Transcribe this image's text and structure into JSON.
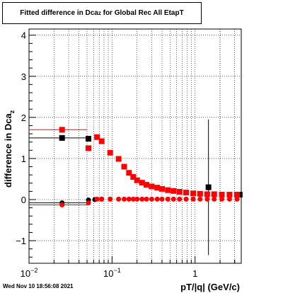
{
  "chart_data": {
    "type": "scatter",
    "title": {
      "main": "Fitted difference in Dca",
      "sub": "z",
      "rest": " for Global Rec All EtapT"
    },
    "xlabel": "pT/|q| (GeV/c)",
    "ylabel": {
      "main": "difference in Dca",
      "sub": "z"
    },
    "xscale": "log",
    "xlim": [
      0.01,
      3.6
    ],
    "ylim": [
      -1.55,
      4.15
    ],
    "grid": true,
    "x_ticks": [
      {
        "value": 0.01,
        "base": "10",
        "exp": "−2"
      },
      {
        "value": 0.1,
        "base": "10",
        "exp": "−1"
      },
      {
        "value": 1,
        "base": "1",
        "exp": ""
      }
    ],
    "y_ticks": [
      -1,
      0,
      1,
      2,
      3,
      4
    ],
    "series": [
      {
        "color": "#000000",
        "marker": "square",
        "points": [
          {
            "x": 0.025,
            "y": 1.5,
            "xerr": [
              0.01,
              0.05
            ]
          },
          {
            "x": 0.052,
            "y": 1.48
          },
          {
            "x": 1.45,
            "y": 0.3,
            "yerr": 1.65
          },
          {
            "x": 3.45,
            "y": 0.12
          }
        ]
      },
      {
        "color": "#000000",
        "marker": "circle",
        "points": [
          {
            "x": 0.025,
            "y": -0.08,
            "xerr": [
              0.01,
              0.05
            ]
          },
          {
            "x": 0.052,
            "y": -0.01
          },
          {
            "x": 0.062,
            "y": 0.0
          },
          {
            "x": 0.075,
            "y": 0.01
          }
        ]
      },
      {
        "color": "#ff0000",
        "marker": "square",
        "points": [
          {
            "x": 0.025,
            "y": 1.7,
            "xerr": [
              0.01,
              0.05
            ]
          },
          {
            "x": 0.052,
            "y": 1.25
          },
          {
            "x": 0.066,
            "y": 1.52
          },
          {
            "x": 0.075,
            "y": 1.42
          },
          {
            "x": 0.095,
            "y": 1.14
          },
          {
            "x": 0.12,
            "y": 0.99
          },
          {
            "x": 0.14,
            "y": 0.8
          },
          {
            "x": 0.16,
            "y": 0.65
          },
          {
            "x": 0.18,
            "y": 0.55
          },
          {
            "x": 0.2,
            "y": 0.47
          },
          {
            "x": 0.23,
            "y": 0.41
          },
          {
            "x": 0.26,
            "y": 0.36
          },
          {
            "x": 0.3,
            "y": 0.32
          },
          {
            "x": 0.35,
            "y": 0.29
          },
          {
            "x": 0.4,
            "y": 0.26
          },
          {
            "x": 0.47,
            "y": 0.23
          },
          {
            "x": 0.55,
            "y": 0.21
          },
          {
            "x": 0.65,
            "y": 0.19
          },
          {
            "x": 0.78,
            "y": 0.17
          },
          {
            "x": 0.95,
            "y": 0.15
          },
          {
            "x": 1.15,
            "y": 0.14
          },
          {
            "x": 1.4,
            "y": 0.13
          },
          {
            "x": 1.7,
            "y": 0.13
          },
          {
            "x": 2.1,
            "y": 0.12
          },
          {
            "x": 2.6,
            "y": 0.12
          },
          {
            "x": 3.2,
            "y": 0.12
          }
        ]
      },
      {
        "color": "#ff0000",
        "marker": "circle",
        "points": [
          {
            "x": 0.025,
            "y": -0.13,
            "xerr": [
              0.01,
              0.05
            ]
          },
          {
            "x": 0.052,
            "y": -0.08
          },
          {
            "x": 0.066,
            "y": 0.01
          },
          {
            "x": 0.075,
            "y": 0.01
          },
          {
            "x": 0.095,
            "y": 0.01
          },
          {
            "x": 0.12,
            "y": 0.01
          },
          {
            "x": 0.14,
            "y": 0.01
          },
          {
            "x": 0.16,
            "y": 0.01
          },
          {
            "x": 0.18,
            "y": 0.01
          },
          {
            "x": 0.2,
            "y": 0.01
          },
          {
            "x": 0.23,
            "y": 0.01
          },
          {
            "x": 0.26,
            "y": 0.01
          },
          {
            "x": 0.3,
            "y": 0.01
          },
          {
            "x": 0.35,
            "y": 0.01
          },
          {
            "x": 0.4,
            "y": 0.01
          },
          {
            "x": 0.47,
            "y": 0.01
          },
          {
            "x": 0.55,
            "y": 0.01
          },
          {
            "x": 0.65,
            "y": 0.01
          },
          {
            "x": 0.78,
            "y": 0.01
          },
          {
            "x": 0.95,
            "y": 0.01
          },
          {
            "x": 1.15,
            "y": 0.01
          },
          {
            "x": 1.4,
            "y": 0.01
          },
          {
            "x": 1.7,
            "y": 0.01
          },
          {
            "x": 2.1,
            "y": 0.01
          },
          {
            "x": 2.6,
            "y": 0.01
          },
          {
            "x": 3.2,
            "y": 0.01
          }
        ]
      }
    ]
  },
  "footer": {
    "timestamp": "Wed Nov 10 18:56:08 2021"
  }
}
